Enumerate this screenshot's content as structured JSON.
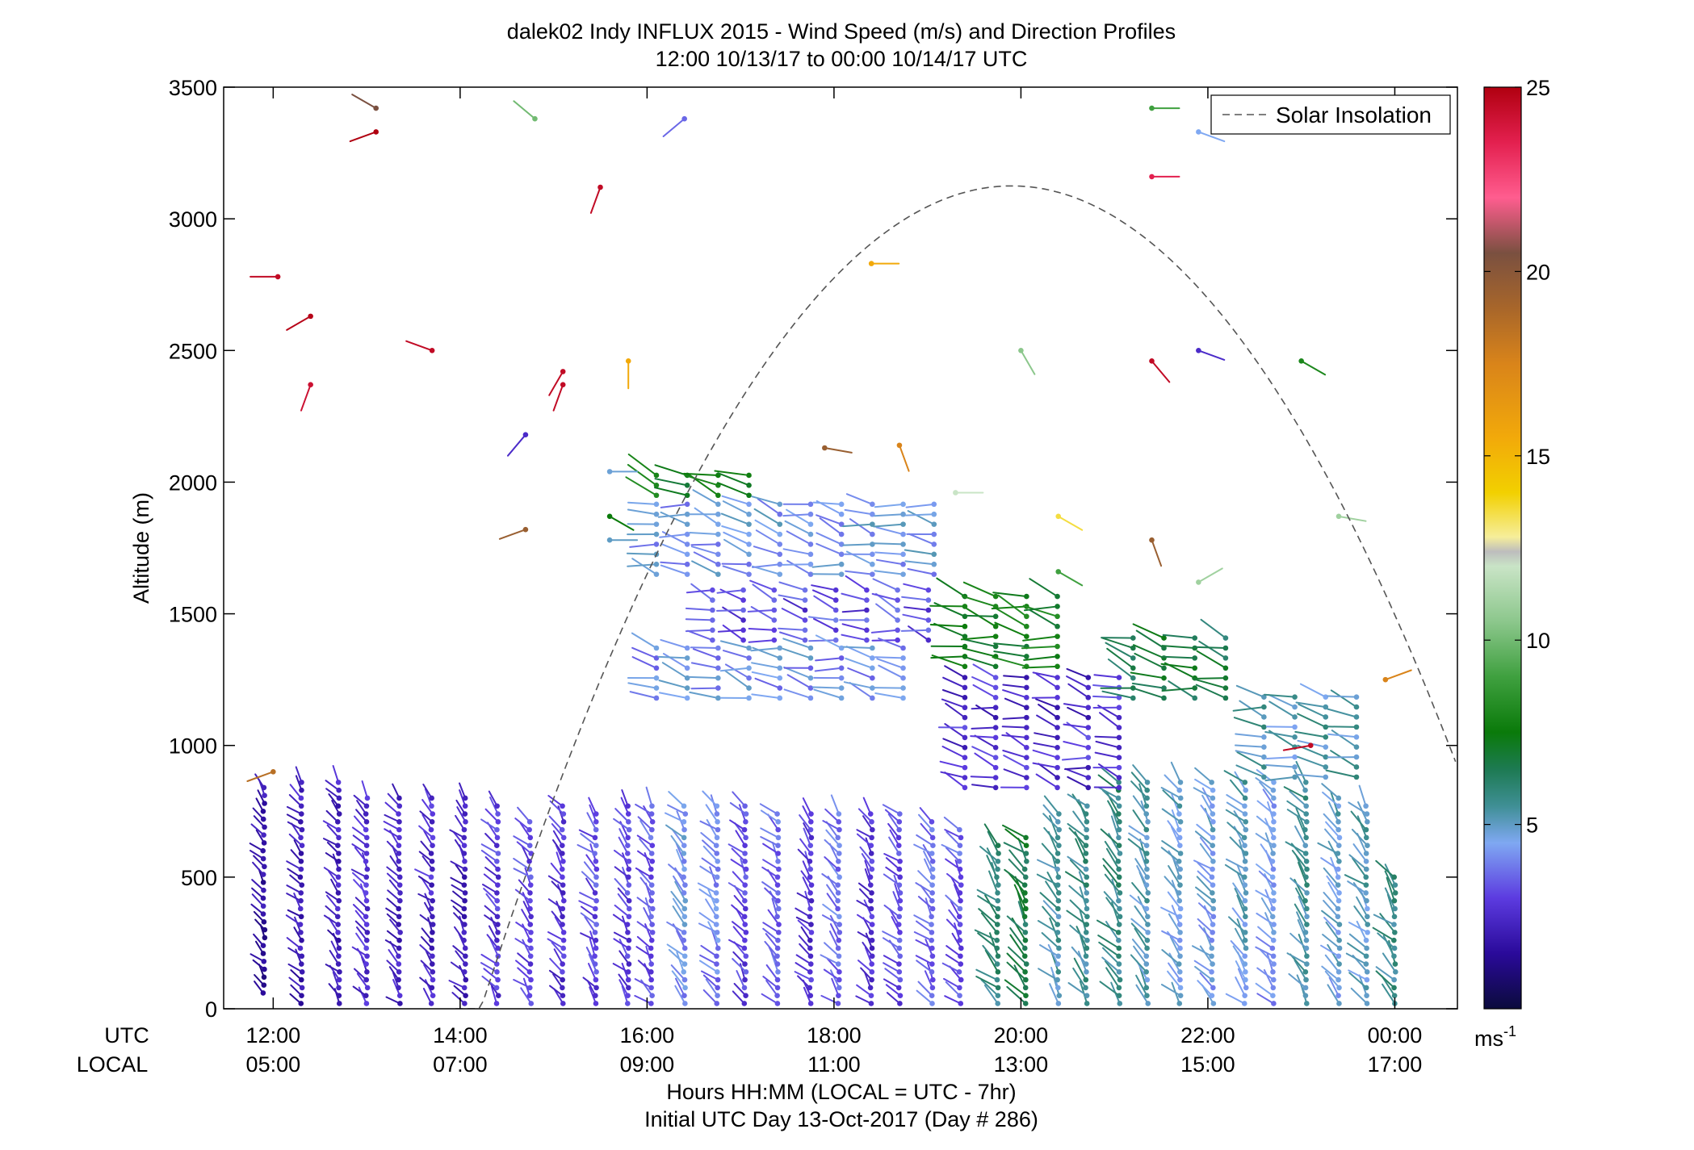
{
  "chart_data": {
    "type": "scatter",
    "title": "dalek02 Indy INFLUX 2015 - Wind Speed (m/s) and Direction Profiles",
    "subtitle": "12:00 10/13/17 to 00:00 10/14/17  UTC",
    "ylabel": "Altitude (m)",
    "xlabel_line1": "Hours HH:MM  (LOCAL = UTC - 7hr)",
    "xlabel_line2": "Initial UTC Day 13-Oct-2017 (Day # 286)",
    "x_row_labels": [
      "UTC",
      "LOCAL"
    ],
    "x_ticks_utc": [
      "12:00",
      "14:00",
      "16:00",
      "18:00",
      "20:00",
      "22:00",
      "00:00"
    ],
    "x_ticks_local": [
      "05:00",
      "07:00",
      "09:00",
      "11:00",
      "13:00",
      "15:00",
      "17:00"
    ],
    "x_tick_hours": [
      12,
      14,
      16,
      18,
      20,
      22,
      24
    ],
    "xlim_hours": [
      11.47,
      24.67
    ],
    "ylim": [
      0,
      3500
    ],
    "y_ticks": [
      0,
      500,
      1000,
      1500,
      2000,
      2500,
      3000,
      3500
    ],
    "grid": false,
    "legend": {
      "label": "Solar Insolation",
      "placement": "top-right",
      "line_style": "dashed",
      "color": "#555555"
    },
    "colorbar": {
      "unit": "ms",
      "unit_exponent": "-1",
      "range": [
        0,
        25
      ],
      "ticks": [
        5,
        10,
        15,
        20,
        25
      ],
      "stops": [
        [
          0,
          "#0b0b3c"
        ],
        [
          1.5,
          "#2a0a9a"
        ],
        [
          3,
          "#5c3be0"
        ],
        [
          4.5,
          "#7fa8f2"
        ],
        [
          5.5,
          "#3f8f95"
        ],
        [
          6.5,
          "#1d7a52"
        ],
        [
          7.5,
          "#0a7a0a"
        ],
        [
          9,
          "#3fa03f"
        ],
        [
          10.5,
          "#8cc78c"
        ],
        [
          12,
          "#c9e4c6"
        ],
        [
          12.4,
          "#bdbdbd"
        ],
        [
          12.8,
          "#f6ee9a"
        ],
        [
          14,
          "#f2d000"
        ],
        [
          15.5,
          "#f2a90a"
        ],
        [
          17.5,
          "#d9841a"
        ],
        [
          19,
          "#a8662a"
        ],
        [
          20.5,
          "#7a5040"
        ],
        [
          22,
          "#ff5d8f"
        ],
        [
          23.5,
          "#e3204f"
        ],
        [
          25,
          "#b00010"
        ]
      ]
    },
    "solar_insolation": {
      "start_hour": 13.95,
      "end_hour": 24.67,
      "peak_hour": 19.9,
      "peak_altitude": 3125,
      "end_altitude": 920
    },
    "profile_series": [
      {
        "t": 11.9,
        "alt": [
          60,
          860
        ],
        "speed": 1.5
      },
      {
        "t": 12.3,
        "alt": [
          20,
          860
        ],
        "speed": 2
      },
      {
        "t": 12.7,
        "alt": [
          20,
          860
        ],
        "speed": 2
      },
      {
        "t": 13.0,
        "alt": [
          20,
          820
        ],
        "speed": 2.5
      },
      {
        "t": 13.35,
        "alt": [
          20,
          820
        ],
        "speed": 2.2
      },
      {
        "t": 13.7,
        "alt": [
          20,
          820
        ],
        "speed": 2.3
      },
      {
        "t": 14.05,
        "alt": [
          20,
          820
        ],
        "speed": 2.0
      },
      {
        "t": 14.4,
        "alt": [
          20,
          780
        ],
        "speed": 2.7
      },
      {
        "t": 14.75,
        "alt": [
          20,
          720
        ],
        "speed": 2.9
      },
      {
        "t": 15.1,
        "alt": [
          20,
          780
        ],
        "speed": 2.6
      },
      {
        "t": 15.45,
        "alt": [
          20,
          760
        ],
        "speed": 3.0
      },
      {
        "t": 15.8,
        "alt": [
          20,
          780
        ],
        "speed": 2.8
      },
      {
        "t": 16.05,
        "alt": [
          20,
          780
        ],
        "speed": 3.2
      },
      {
        "t": 16.4,
        "alt": [
          20,
          780
        ],
        "speed": 4.2
      },
      {
        "t": 16.75,
        "alt": [
          20,
          780
        ],
        "speed": 3.8
      },
      {
        "t": 17.05,
        "alt": [
          20,
          780
        ],
        "speed": 3.0
      },
      {
        "t": 17.4,
        "alt": [
          20,
          760
        ],
        "speed": 3.4
      },
      {
        "t": 17.75,
        "alt": [
          20,
          740
        ],
        "speed": 2.6
      },
      {
        "t": 18.05,
        "alt": [
          20,
          760
        ],
        "speed": 3.6
      },
      {
        "t": 18.4,
        "alt": [
          20,
          760
        ],
        "speed": 2.5
      },
      {
        "t": 18.7,
        "alt": [
          20,
          740
        ],
        "speed": 3.1
      },
      {
        "t": 19.05,
        "alt": [
          20,
          720
        ],
        "speed": 3.5
      },
      {
        "t": 19.35,
        "alt": [
          20,
          700
        ],
        "speed": 3.2
      },
      {
        "t": 19.75,
        "alt": [
          20,
          620
        ],
        "speed": 5.8
      },
      {
        "t": 20.05,
        "alt": [
          20,
          660
        ],
        "speed": 6.4
      },
      {
        "t": 20.4,
        "alt": [
          20,
          760
        ],
        "speed": 5.2
      },
      {
        "t": 20.7,
        "alt": [
          20,
          780
        ],
        "speed": 5.5
      },
      {
        "t": 21.05,
        "alt": [
          20,
          860
        ],
        "speed": 5.6
      },
      {
        "t": 21.35,
        "alt": [
          20,
          860
        ],
        "speed": 5.0
      },
      {
        "t": 21.7,
        "alt": [
          20,
          860
        ],
        "speed": 4.6
      },
      {
        "t": 22.05,
        "alt": [
          20,
          860
        ],
        "speed": 4.4
      },
      {
        "t": 22.4,
        "alt": [
          20,
          860
        ],
        "speed": 4.8
      },
      {
        "t": 22.7,
        "alt": [
          20,
          860
        ],
        "speed": 4.2
      },
      {
        "t": 23.05,
        "alt": [
          20,
          860
        ],
        "speed": 5.3
      },
      {
        "t": 23.4,
        "alt": [
          20,
          820
        ],
        "speed": 4.6
      },
      {
        "t": 23.7,
        "alt": [
          20,
          780
        ],
        "speed": 4.9
      },
      {
        "t": 24.0,
        "alt": [
          20,
          520
        ],
        "speed": 5.6
      }
    ],
    "upper_barb_groups": [
      {
        "t": [
          16.1,
          17.1
        ],
        "alt": [
          1950,
          2030
        ],
        "speed": 7.5
      },
      {
        "t": [
          16.1,
          19.3
        ],
        "alt": [
          1650,
          1930
        ],
        "speed": 4.4
      },
      {
        "t": [
          16.7,
          19.3
        ],
        "alt": [
          1400,
          1620
        ],
        "speed": 3.2
      },
      {
        "t": [
          16.1,
          18.8
        ],
        "alt": [
          1180,
          1380
        ],
        "speed": 4.2
      },
      {
        "t": [
          19.4,
          20.4
        ],
        "alt": [
          1300,
          1580
        ],
        "speed": 7.6
      },
      {
        "t": [
          19.4,
          21.1
        ],
        "alt": [
          840,
          1280
        ],
        "speed": 2.6
      },
      {
        "t": [
          21.2,
          22.5
        ],
        "alt": [
          1180,
          1420
        ],
        "speed": 6.6
      },
      {
        "t": [
          22.6,
          23.6
        ],
        "alt": [
          880,
          1200
        ],
        "speed": 5.2
      }
    ],
    "scattered_barbs": [
      {
        "t": 12.0,
        "alt": 900,
        "speed": 18.5,
        "dir": 250
      },
      {
        "t": 12.05,
        "alt": 2780,
        "speed": 24.5,
        "dir": 270
      },
      {
        "t": 12.4,
        "alt": 2630,
        "speed": 24.8,
        "dir": 240
      },
      {
        "t": 12.4,
        "alt": 2370,
        "speed": 24.2,
        "dir": 200
      },
      {
        "t": 13.1,
        "alt": 3420,
        "speed": 20.5,
        "dir": 300
      },
      {
        "t": 13.1,
        "alt": 3330,
        "speed": 25.0,
        "dir": 250
      },
      {
        "t": 13.7,
        "alt": 2500,
        "speed": 24.5,
        "dir": 290
      },
      {
        "t": 14.8,
        "alt": 3380,
        "speed": 10.0,
        "dir": 310
      },
      {
        "t": 15.5,
        "alt": 3120,
        "speed": 24.5,
        "dir": 200
      },
      {
        "t": 15.1,
        "alt": 2370,
        "speed": 24.5,
        "dir": 200
      },
      {
        "t": 15.1,
        "alt": 2420,
        "speed": 24.5,
        "dir": 210
      },
      {
        "t": 15.8,
        "alt": 2460,
        "speed": 15.5,
        "dir": 180
      },
      {
        "t": 14.7,
        "alt": 2180,
        "speed": 2.5,
        "dir": 220
      },
      {
        "t": 14.7,
        "alt": 1820,
        "speed": 19.5,
        "dir": 250
      },
      {
        "t": 15.6,
        "alt": 2040,
        "speed": 4.8,
        "dir": 90
      },
      {
        "t": 15.6,
        "alt": 1780,
        "speed": 5.0,
        "dir": 90
      },
      {
        "t": 15.6,
        "alt": 1870,
        "speed": 7.5,
        "dir": 120
      },
      {
        "t": 16.4,
        "alt": 3380,
        "speed": 3.6,
        "dir": 230
      },
      {
        "t": 18.4,
        "alt": 2830,
        "speed": 15.5,
        "dir": 90
      },
      {
        "t": 17.9,
        "alt": 2130,
        "speed": 19.5,
        "dir": 100
      },
      {
        "t": 18.7,
        "alt": 2140,
        "speed": 17.5,
        "dir": 160
      },
      {
        "t": 19.3,
        "alt": 1960,
        "speed": 12.0,
        "dir": 90
      },
      {
        "t": 20.0,
        "alt": 2500,
        "speed": 10.5,
        "dir": 150
      },
      {
        "t": 20.4,
        "alt": 1870,
        "speed": 13.5,
        "dir": 120
      },
      {
        "t": 20.4,
        "alt": 1660,
        "speed": 9.0,
        "dir": 120
      },
      {
        "t": 21.4,
        "alt": 3160,
        "speed": 23.5,
        "dir": 90
      },
      {
        "t": 21.4,
        "alt": 3420,
        "speed": 9.0,
        "dir": 90
      },
      {
        "t": 21.4,
        "alt": 2460,
        "speed": 24.5,
        "dir": 140
      },
      {
        "t": 21.4,
        "alt": 1780,
        "speed": 19.5,
        "dir": 160
      },
      {
        "t": 21.9,
        "alt": 3330,
        "speed": 4.5,
        "dir": 110
      },
      {
        "t": 21.9,
        "alt": 2500,
        "speed": 2.5,
        "dir": 110
      },
      {
        "t": 21.9,
        "alt": 1620,
        "speed": 11.0,
        "dir": 60
      },
      {
        "t": 23.0,
        "alt": 2460,
        "speed": 8.0,
        "dir": 120
      },
      {
        "t": 23.4,
        "alt": 1870,
        "speed": 11.0,
        "dir": 100
      },
      {
        "t": 23.9,
        "alt": 1250,
        "speed": 17.5,
        "dir": 70
      },
      {
        "t": 23.1,
        "alt": 1000,
        "speed": 24.5,
        "dir": 260
      }
    ]
  }
}
